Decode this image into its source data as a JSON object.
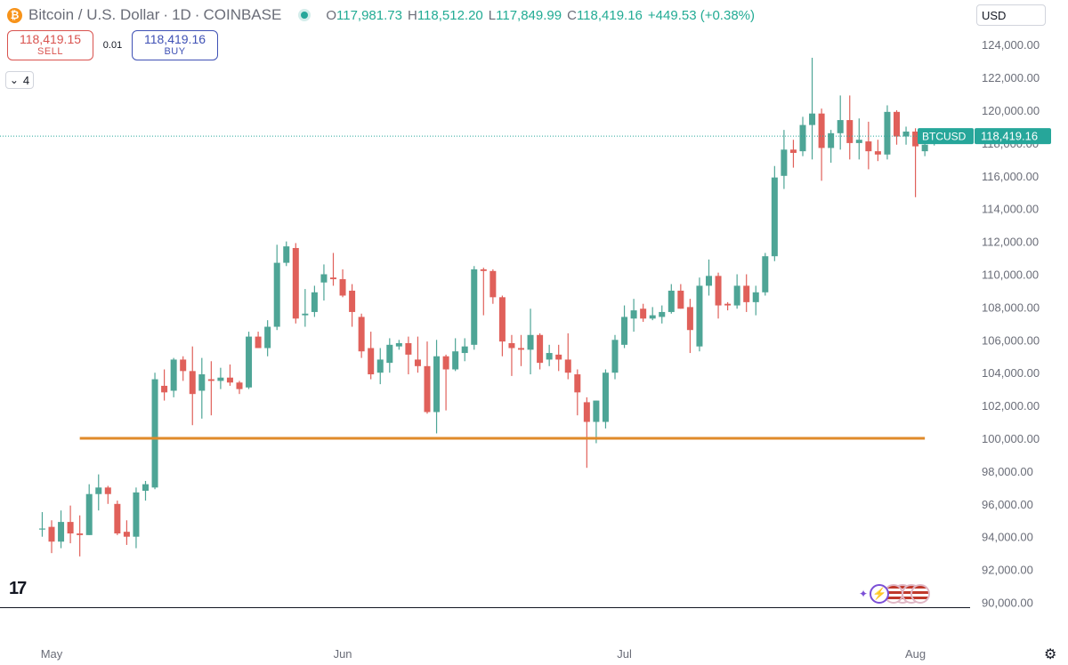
{
  "header": {
    "logo_glyph": "₿",
    "symbol": "Bitcoin / U.S. Dollar",
    "interval": "1D",
    "exchange": "COINBASE",
    "sep": "·",
    "ohlc": {
      "o_label": "O",
      "o": "117,981.73",
      "h_label": "H",
      "h": "118,512.20",
      "l_label": "L",
      "l": "117,849.99",
      "c_label": "C",
      "c": "118,419.16",
      "change": "+449.53 (+0.38%)"
    }
  },
  "trade": {
    "sell_price": "118,419.15",
    "sell_label": "SELL",
    "spread": "0.01",
    "buy_price": "118,419.16",
    "buy_label": "BUY"
  },
  "indicators": {
    "glyph": "⌄",
    "count": "4"
  },
  "currency": "USD",
  "tv_logo": "17",
  "colors": {
    "up": "#4ea596",
    "down": "#e0605a",
    "support": "#e08a2a",
    "price_line": "#26a69a"
  },
  "chart_data": {
    "type": "candlestick",
    "y_range": [
      90000,
      125000
    ],
    "y_ticks": [
      90000,
      92000,
      94000,
      96000,
      98000,
      100000,
      102000,
      104000,
      106000,
      108000,
      110000,
      112000,
      114000,
      116000,
      118000,
      120000,
      122000,
      124000
    ],
    "y_tick_labels": [
      "90,000.00",
      "92,000.00",
      "94,000.00",
      "96,000.00",
      "98,000.00",
      "100,000.00",
      "102,000.00",
      "104,000.00",
      "106,000.00",
      "108,000.00",
      "110,000.00",
      "112,000.00",
      "114,000.00",
      "116,000.00",
      "118,000.00",
      "120,000.00",
      "122,000.00",
      "124,000.00"
    ],
    "x_labels": [
      "May",
      "Jun",
      "Jul",
      "Aug"
    ],
    "x_label_days": [
      0,
      31,
      61,
      92
    ],
    "day_start": -1,
    "support_level": 100000,
    "support_days": [
      3,
      93
    ],
    "last_price": 118419.16,
    "last_price_label": "BTCUSD",
    "last_price_value": "118,419.16",
    "candles": [
      {
        "o": 94500,
        "h": 95500,
        "l": 94000,
        "c": 94500
      },
      {
        "o": 94600,
        "h": 95000,
        "l": 93000,
        "c": 93700
      },
      {
        "o": 93700,
        "h": 95600,
        "l": 93300,
        "c": 94900
      },
      {
        "o": 94900,
        "h": 95900,
        "l": 93600,
        "c": 94200
      },
      {
        "o": 94200,
        "h": 95300,
        "l": 92800,
        "c": 94100
      },
      {
        "o": 94100,
        "h": 97200,
        "l": 94100,
        "c": 96600
      },
      {
        "o": 96600,
        "h": 97800,
        "l": 95600,
        "c": 97000
      },
      {
        "o": 97000,
        "h": 97100,
        "l": 96000,
        "c": 96600
      },
      {
        "o": 96000,
        "h": 96200,
        "l": 94100,
        "c": 94200
      },
      {
        "o": 94300,
        "h": 95000,
        "l": 93500,
        "c": 94000
      },
      {
        "o": 94000,
        "h": 97000,
        "l": 93300,
        "c": 96700
      },
      {
        "o": 96800,
        "h": 97400,
        "l": 96200,
        "c": 97200
      },
      {
        "o": 97000,
        "h": 104000,
        "l": 96900,
        "c": 103600
      },
      {
        "o": 103200,
        "h": 104200,
        "l": 102300,
        "c": 102800
      },
      {
        "o": 102900,
        "h": 104900,
        "l": 102500,
        "c": 104800
      },
      {
        "o": 104800,
        "h": 105000,
        "l": 103500,
        "c": 104100
      },
      {
        "o": 104100,
        "h": 105600,
        "l": 100800,
        "c": 102700
      },
      {
        "o": 102900,
        "h": 104900,
        "l": 101200,
        "c": 103900
      },
      {
        "o": 103600,
        "h": 104700,
        "l": 101400,
        "c": 103500
      },
      {
        "o": 103500,
        "h": 104300,
        "l": 103000,
        "c": 103700
      },
      {
        "o": 103700,
        "h": 104500,
        "l": 103200,
        "c": 103400
      },
      {
        "o": 103400,
        "h": 103500,
        "l": 102700,
        "c": 103000
      },
      {
        "o": 103100,
        "h": 106500,
        "l": 103000,
        "c": 106200
      },
      {
        "o": 106200,
        "h": 106500,
        "l": 105500,
        "c": 105500
      },
      {
        "o": 105500,
        "h": 107200,
        "l": 105000,
        "c": 106800
      },
      {
        "o": 106800,
        "h": 111800,
        "l": 106600,
        "c": 110700
      },
      {
        "o": 110700,
        "h": 112000,
        "l": 110500,
        "c": 111700
      },
      {
        "o": 111600,
        "h": 111900,
        "l": 107000,
        "c": 107300
      },
      {
        "o": 107500,
        "h": 109100,
        "l": 106800,
        "c": 107600
      },
      {
        "o": 107700,
        "h": 109300,
        "l": 107400,
        "c": 108900
      },
      {
        "o": 109500,
        "h": 110600,
        "l": 108400,
        "c": 110000
      },
      {
        "o": 109800,
        "h": 111300,
        "l": 109300,
        "c": 109700
      },
      {
        "o": 109700,
        "h": 110300,
        "l": 108600,
        "c": 108700
      },
      {
        "o": 109000,
        "h": 109400,
        "l": 106800,
        "c": 107700
      },
      {
        "o": 107400,
        "h": 107600,
        "l": 104900,
        "c": 105300
      },
      {
        "o": 105500,
        "h": 106500,
        "l": 103600,
        "c": 103900
      },
      {
        "o": 104000,
        "h": 105500,
        "l": 103300,
        "c": 104800
      },
      {
        "o": 104600,
        "h": 106100,
        "l": 104000,
        "c": 105700
      },
      {
        "o": 105600,
        "h": 106000,
        "l": 105400,
        "c": 105800
      },
      {
        "o": 105800,
        "h": 106200,
        "l": 103900,
        "c": 105100
      },
      {
        "o": 104800,
        "h": 106200,
        "l": 104000,
        "c": 104400
      },
      {
        "o": 104400,
        "h": 105900,
        "l": 101500,
        "c": 101600
      },
      {
        "o": 101600,
        "h": 106000,
        "l": 100300,
        "c": 105000
      },
      {
        "o": 105000,
        "h": 105100,
        "l": 101700,
        "c": 104200
      },
      {
        "o": 104200,
        "h": 106100,
        "l": 104100,
        "c": 105300
      },
      {
        "o": 105200,
        "h": 106100,
        "l": 104700,
        "c": 105600
      },
      {
        "o": 105700,
        "h": 110500,
        "l": 105400,
        "c": 110300
      },
      {
        "o": 110300,
        "h": 110400,
        "l": 107500,
        "c": 110200
      },
      {
        "o": 110200,
        "h": 110300,
        "l": 108200,
        "c": 108600
      },
      {
        "o": 108600,
        "h": 108700,
        "l": 105000,
        "c": 105900
      },
      {
        "o": 105800,
        "h": 106300,
        "l": 103800,
        "c": 105500
      },
      {
        "o": 105500,
        "h": 106300,
        "l": 104400,
        "c": 105400
      },
      {
        "o": 105400,
        "h": 107900,
        "l": 103900,
        "c": 106300
      },
      {
        "o": 106300,
        "h": 106400,
        "l": 104200,
        "c": 104600
      },
      {
        "o": 104800,
        "h": 105700,
        "l": 104400,
        "c": 105200
      },
      {
        "o": 105100,
        "h": 105700,
        "l": 104100,
        "c": 104800
      },
      {
        "o": 104800,
        "h": 106400,
        "l": 103600,
        "c": 104000
      },
      {
        "o": 103900,
        "h": 104200,
        "l": 101400,
        "c": 102800
      },
      {
        "o": 102200,
        "h": 102500,
        "l": 98200,
        "c": 101000
      },
      {
        "o": 101000,
        "h": 102300,
        "l": 99700,
        "c": 102300
      },
      {
        "o": 101000,
        "h": 104200,
        "l": 100600,
        "c": 104000
      },
      {
        "o": 104000,
        "h": 106300,
        "l": 103600,
        "c": 106000
      },
      {
        "o": 105700,
        "h": 108100,
        "l": 105500,
        "c": 107400
      },
      {
        "o": 107300,
        "h": 108500,
        "l": 106500,
        "c": 107800
      },
      {
        "o": 107900,
        "h": 108200,
        "l": 107100,
        "c": 107300
      },
      {
        "o": 107300,
        "h": 108000,
        "l": 107200,
        "c": 107500
      },
      {
        "o": 107400,
        "h": 108100,
        "l": 107000,
        "c": 107700
      },
      {
        "o": 107700,
        "h": 109400,
        "l": 107600,
        "c": 109000
      },
      {
        "o": 109000,
        "h": 109400,
        "l": 107900,
        "c": 107900
      },
      {
        "o": 108000,
        "h": 108500,
        "l": 105200,
        "c": 106600
      },
      {
        "o": 105600,
        "h": 109800,
        "l": 105300,
        "c": 109300
      },
      {
        "o": 109300,
        "h": 110900,
        "l": 108700,
        "c": 109900
      },
      {
        "o": 109900,
        "h": 110100,
        "l": 107300,
        "c": 108100
      },
      {
        "o": 108200,
        "h": 108300,
        "l": 107800,
        "c": 108100
      },
      {
        "o": 108100,
        "h": 110000,
        "l": 107900,
        "c": 109300
      },
      {
        "o": 109300,
        "h": 110000,
        "l": 107700,
        "c": 108300
      },
      {
        "o": 108300,
        "h": 109300,
        "l": 107500,
        "c": 108900
      },
      {
        "o": 108900,
        "h": 111300,
        "l": 108700,
        "c": 111100
      },
      {
        "o": 111100,
        "h": 116600,
        "l": 110800,
        "c": 115900
      },
      {
        "o": 116000,
        "h": 118800,
        "l": 115200,
        "c": 117600
      },
      {
        "o": 117600,
        "h": 118200,
        "l": 116500,
        "c": 117400
      },
      {
        "o": 117500,
        "h": 119600,
        "l": 117200,
        "c": 119100
      },
      {
        "o": 119100,
        "h": 123200,
        "l": 117000,
        "c": 119800
      },
      {
        "o": 119800,
        "h": 120100,
        "l": 115700,
        "c": 117700
      },
      {
        "o": 117700,
        "h": 118800,
        "l": 116800,
        "c": 118600
      },
      {
        "o": 118600,
        "h": 120900,
        "l": 117600,
        "c": 119400
      },
      {
        "o": 119400,
        "h": 120900,
        "l": 117000,
        "c": 118000
      },
      {
        "o": 118000,
        "h": 119500,
        "l": 117000,
        "c": 118200
      },
      {
        "o": 118100,
        "h": 119300,
        "l": 116400,
        "c": 117500
      },
      {
        "o": 117500,
        "h": 118200,
        "l": 116900,
        "c": 117300
      },
      {
        "o": 117300,
        "h": 120300,
        "l": 117000,
        "c": 119900
      },
      {
        "o": 119900,
        "h": 120000,
        "l": 117900,
        "c": 118400
      },
      {
        "o": 118400,
        "h": 119000,
        "l": 117900,
        "c": 118700
      },
      {
        "o": 118700,
        "h": 118900,
        "l": 114700,
        "c": 117800
      },
      {
        "o": 117500,
        "h": 118100,
        "l": 117200,
        "c": 117900
      },
      {
        "o": 117980,
        "h": 118510,
        "l": 117850,
        "c": 118420
      }
    ]
  }
}
